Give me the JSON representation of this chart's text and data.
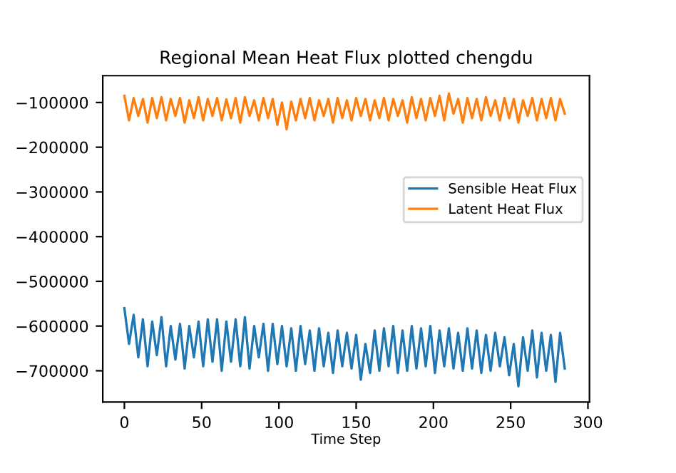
{
  "chart_data": {
    "type": "line",
    "title": "Regional Mean Heat Flux plotted chengdu",
    "xlabel": "Time Step",
    "x": [
      0,
      3,
      6,
      9,
      12,
      15,
      18,
      21,
      24,
      27,
      30,
      33,
      36,
      39,
      42,
      45,
      48,
      51,
      54,
      57,
      60,
      63,
      66,
      69,
      72,
      75,
      78,
      81,
      84,
      87,
      90,
      93,
      96,
      99,
      102,
      105,
      108,
      111,
      114,
      117,
      120,
      123,
      126,
      129,
      132,
      135,
      138,
      141,
      144,
      147,
      150,
      153,
      156,
      159,
      162,
      165,
      168,
      171,
      174,
      177,
      180,
      183,
      186,
      189,
      192,
      195,
      198,
      201,
      204,
      207,
      210,
      213,
      216,
      219,
      222,
      225,
      228,
      231,
      234,
      237,
      240,
      243,
      246,
      249,
      252,
      255,
      258,
      261,
      264,
      267,
      270,
      273,
      276,
      279,
      282,
      285
    ],
    "series": [
      {
        "name": "Sensible Heat Flux",
        "color": "#1f77b4",
        "values": [
          -560000,
          -640000,
          -575000,
          -670000,
          -585000,
          -690000,
          -590000,
          -665000,
          -580000,
          -690000,
          -600000,
          -675000,
          -595000,
          -695000,
          -600000,
          -670000,
          -590000,
          -690000,
          -585000,
          -680000,
          -585000,
          -700000,
          -590000,
          -680000,
          -585000,
          -690000,
          -580000,
          -695000,
          -600000,
          -670000,
          -595000,
          -700000,
          -595000,
          -685000,
          -600000,
          -690000,
          -605000,
          -700000,
          -600000,
          -685000,
          -610000,
          -700000,
          -605000,
          -690000,
          -615000,
          -705000,
          -610000,
          -690000,
          -615000,
          -695000,
          -620000,
          -720000,
          -640000,
          -705000,
          -610000,
          -700000,
          -605000,
          -690000,
          -600000,
          -705000,
          -610000,
          -700000,
          -600000,
          -695000,
          -605000,
          -690000,
          -600000,
          -705000,
          -610000,
          -690000,
          -605000,
          -695000,
          -615000,
          -700000,
          -605000,
          -695000,
          -610000,
          -705000,
          -620000,
          -700000,
          -615000,
          -690000,
          -625000,
          -710000,
          -640000,
          -735000,
          -625000,
          -700000,
          -610000,
          -715000,
          -615000,
          -700000,
          -620000,
          -725000,
          -615000,
          -695000
        ]
      },
      {
        "name": "Latent Heat Flux",
        "color": "#ff7f0e",
        "values": [
          -85000,
          -140000,
          -90000,
          -130000,
          -92000,
          -145000,
          -90000,
          -135000,
          -88000,
          -140000,
          -92000,
          -130000,
          -90000,
          -145000,
          -95000,
          -135000,
          -88000,
          -140000,
          -92000,
          -130000,
          -90000,
          -140000,
          -93000,
          -135000,
          -90000,
          -145000,
          -88000,
          -130000,
          -95000,
          -140000,
          -90000,
          -135000,
          -92000,
          -150000,
          -100000,
          -160000,
          -98000,
          -140000,
          -92000,
          -135000,
          -90000,
          -140000,
          -95000,
          -130000,
          -92000,
          -145000,
          -90000,
          -135000,
          -95000,
          -140000,
          -90000,
          -130000,
          -92000,
          -140000,
          -95000,
          -135000,
          -90000,
          -140000,
          -92000,
          -130000,
          -95000,
          -145000,
          -88000,
          -135000,
          -92000,
          -140000,
          -90000,
          -130000,
          -85000,
          -140000,
          -80000,
          -125000,
          -92000,
          -145000,
          -90000,
          -135000,
          -92000,
          -140000,
          -88000,
          -130000,
          -95000,
          -140000,
          -90000,
          -135000,
          -92000,
          -145000,
          -95000,
          -130000,
          -90000,
          -140000,
          -92000,
          -135000,
          -90000,
          -140000,
          -92000,
          -125000
        ]
      }
    ],
    "xlim": [
      -14,
      301
    ],
    "xticks": [
      0,
      50,
      100,
      150,
      200,
      250,
      300
    ],
    "ylim": [
      -770000,
      -40000
    ],
    "yticks": [
      -700000,
      -600000,
      -500000,
      -400000,
      -300000,
      -200000,
      -100000
    ],
    "legend": "right",
    "grid": false
  }
}
